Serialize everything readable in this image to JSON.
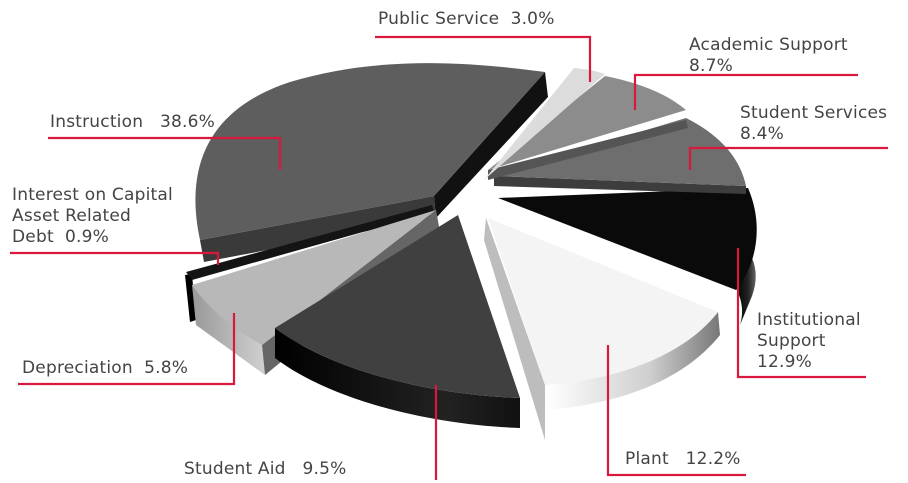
{
  "chart_data": {
    "type": "pie",
    "style": "3d-exploded",
    "leader_color": "#d8183c",
    "slices": [
      {
        "id": "public-service",
        "label": "Public Service",
        "value": 3.0,
        "value_text": "3.0%",
        "color": "#dcdcdc"
      },
      {
        "id": "academic-support",
        "label": "Academic Support",
        "value": 8.7,
        "value_text": "8.7%",
        "color": "#8c8c8c"
      },
      {
        "id": "student-services",
        "label": "Student Services",
        "value": 8.4,
        "value_text": "8.4%",
        "color": "#6e6e6e"
      },
      {
        "id": "institutional-support",
        "label": "Institutional Support",
        "value": 12.9,
        "value_text": "12.9%",
        "color": "#0a0a0a"
      },
      {
        "id": "plant",
        "label": "Plant",
        "value": 12.2,
        "value_text": "12.2%",
        "color": "#f4f4f4"
      },
      {
        "id": "student-aid",
        "label": "Student Aid",
        "value": 9.5,
        "value_text": "9.5%",
        "color": "#404040"
      },
      {
        "id": "depreciation",
        "label": "Depreciation",
        "value": 5.8,
        "value_text": "5.8%",
        "color": "#b8b8b8"
      },
      {
        "id": "interest",
        "label": "Interest on Capital Asset Related Debt",
        "value": 0.9,
        "value_text": "0.9%",
        "color": "#111111"
      },
      {
        "id": "instruction",
        "label": "Instruction",
        "value": 38.6,
        "value_text": "38.6%",
        "color": "#5e5e5e"
      }
    ]
  },
  "labels": {
    "public_service": {
      "line1": "Public Service",
      "value": "3.0%"
    },
    "academic_support": {
      "line1": "Academic Support",
      "value": "8.7%"
    },
    "student_services": {
      "line1": "Student Services",
      "value": "8.4%"
    },
    "institutional_support": {
      "line1": "Institutional",
      "line2": "Support",
      "value": "12.9%"
    },
    "plant": {
      "line1": "Plant",
      "value": "12.2%"
    },
    "student_aid": {
      "line1": "Student Aid",
      "value": "9.5%"
    },
    "depreciation": {
      "line1": "Depreciation",
      "value": "5.8%"
    },
    "interest": {
      "line1": "Interest on Capital",
      "line2": "Asset Related",
      "line3": "Debt",
      "value": "0.9%"
    },
    "instruction": {
      "line1": "Instruction",
      "value": "38.6%"
    }
  }
}
